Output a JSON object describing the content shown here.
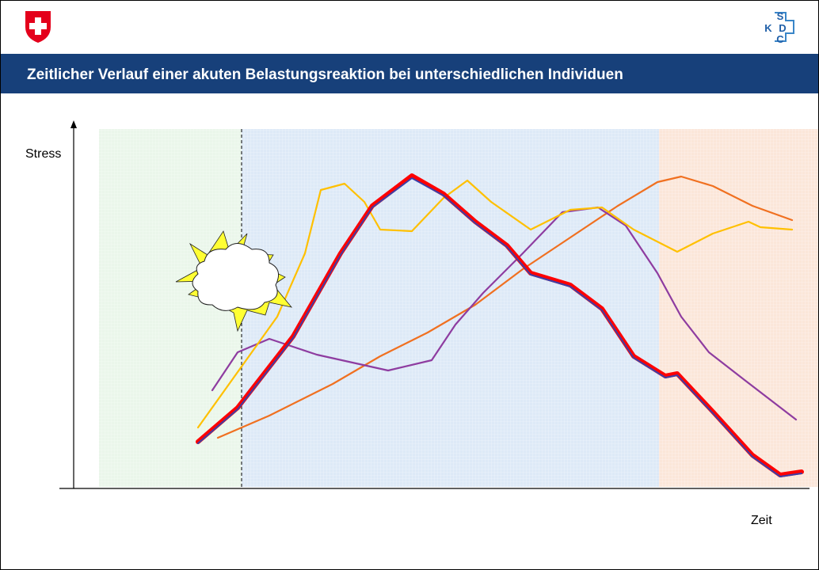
{
  "header": {
    "title": "Zeitlicher Verlauf einer akuten Belastungsreaktion bei unterschiedlichen Individuen"
  },
  "logo": {
    "letters": [
      "S",
      "K",
      "D",
      "C"
    ]
  },
  "diagram": {
    "y_axis_label": "Stress",
    "x_axis_label": "Zeit"
  }
}
